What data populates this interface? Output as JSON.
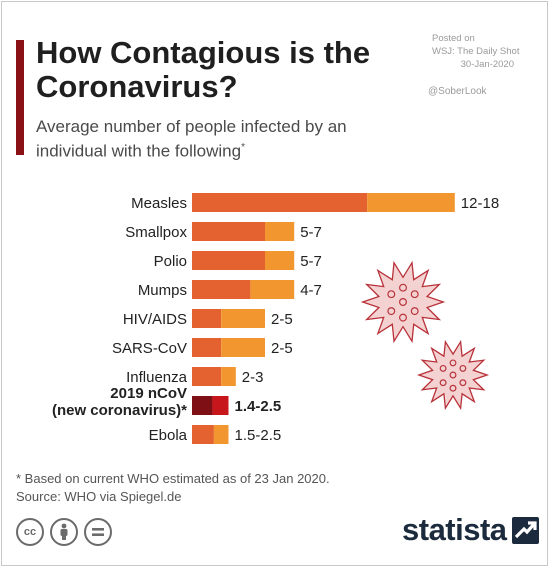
{
  "header": {
    "title_line1": "How Contagious is the",
    "title_line2": "Coronavirus?",
    "subtitle_line1": "Average number of people infected by an",
    "subtitle_line2": "individual with the following",
    "subtitle_mark": "*"
  },
  "source_box": {
    "line1": "Posted on",
    "line2": "WSJ: The Daily Shot",
    "line3": "30-Jan-2020",
    "handle": "@SoberLook"
  },
  "footer": {
    "note": "* Based on current WHO estimated as of 23 Jan 2020.",
    "source": "Source: WHO via Spiegel.de",
    "brand": "statista",
    "icons": [
      "cc-icon",
      "attribution-icon",
      "no-derivatives-icon"
    ]
  },
  "colors": {
    "low": "#e4622f",
    "high": "#f2972f",
    "highlight_low": "#7e0f14",
    "highlight_high": "#c8161d",
    "virus_fill": "#f4d2d2",
    "virus_stroke": "#b8323a"
  },
  "chart_data": {
    "type": "bar",
    "orientation": "horizontal",
    "stacked_range": true,
    "categories": [
      "Measles",
      "Smallpox",
      "Polio",
      "Mumps",
      "HIV/AIDS",
      "SARS-CoV",
      "Influenza",
      "2019 nCoV\n(new coronavirus)*",
      "Ebola"
    ],
    "series": [
      {
        "values": [
          12,
          5,
          5,
          4,
          2,
          2,
          2,
          1.4,
          1.5
        ]
      },
      {
        "values": [
          18,
          7,
          7,
          7,
          5,
          5,
          3,
          2.5,
          2.5
        ]
      }
    ],
    "value_labels": [
      "12-18",
      "5-7",
      "5-7",
      "4-7",
      "2-5",
      "2-5",
      "2-3",
      "1.4-2.5",
      "1.5-2.5"
    ],
    "highlight_index": 7,
    "xlim": [
      0,
      18
    ],
    "grid": false,
    "legend": "none"
  }
}
